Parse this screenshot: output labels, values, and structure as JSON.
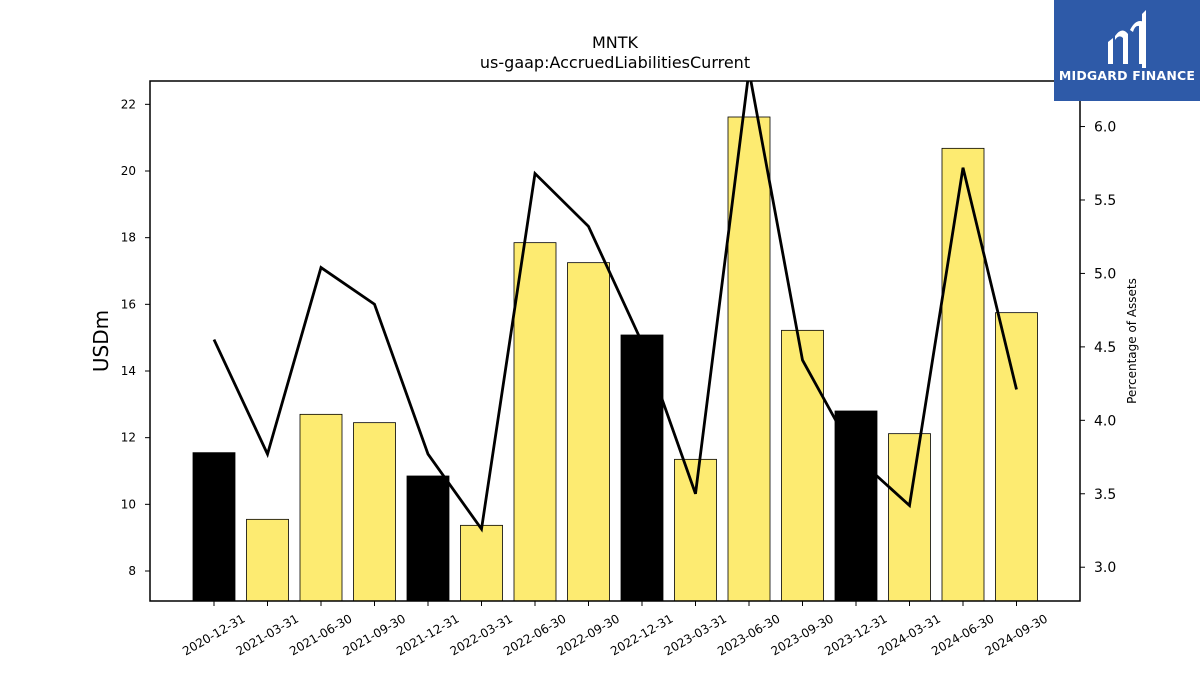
{
  "chart_data": {
    "type": "bar",
    "title": "MNTK",
    "subtitle": "us-gaap:AccruedLiabilitiesCurrent",
    "ylabel": "USDm",
    "y2label": "Percentage of Assets",
    "ylim": [
      7.1,
      22.7
    ],
    "y2lim": [
      2.77,
      6.31
    ],
    "yticks": [
      8,
      10,
      12,
      14,
      16,
      18,
      20,
      22
    ],
    "y2ticks": [
      "3.0",
      "3.5",
      "4.0",
      "4.5",
      "5.0",
      "5.5",
      "6.0"
    ],
    "categories": [
      "2020-12-31",
      "2021-03-31",
      "2021-06-30",
      "2021-09-30",
      "2021-12-31",
      "2022-03-31",
      "2022-06-30",
      "2022-09-30",
      "2022-12-31",
      "2023-03-31",
      "2023-06-30",
      "2023-09-30",
      "2023-12-31",
      "2024-03-31",
      "2024-06-30",
      "2024-09-30"
    ],
    "series": [
      {
        "type": "bar",
        "values": [
          11.55,
          9.55,
          12.7,
          12.45,
          10.85,
          9.37,
          17.85,
          17.25,
          15.08,
          11.35,
          21.62,
          15.22,
          12.8,
          12.12,
          20.68,
          15.75
        ],
        "colors": [
          "#000000",
          "#fdeb71",
          "#fdeb71",
          "#fdeb71",
          "#000000",
          "#fdeb71",
          "#fdeb71",
          "#fdeb71",
          "#000000",
          "#fdeb71",
          "#fdeb71",
          "#fdeb71",
          "#000000",
          "#fdeb71",
          "#fdeb71",
          "#fdeb71"
        ]
      },
      {
        "type": "line",
        "axis": "right",
        "color": "#000000",
        "values": [
          4.55,
          3.77,
          5.04,
          4.79,
          3.77,
          3.26,
          5.68,
          5.32,
          4.53,
          3.5,
          6.38,
          4.41,
          3.75,
          3.42,
          5.72,
          4.21
        ]
      }
    ],
    "grid": false
  },
  "logo": {
    "text": "MIDGARD FINANCE",
    "background": "#2e5aa8"
  }
}
